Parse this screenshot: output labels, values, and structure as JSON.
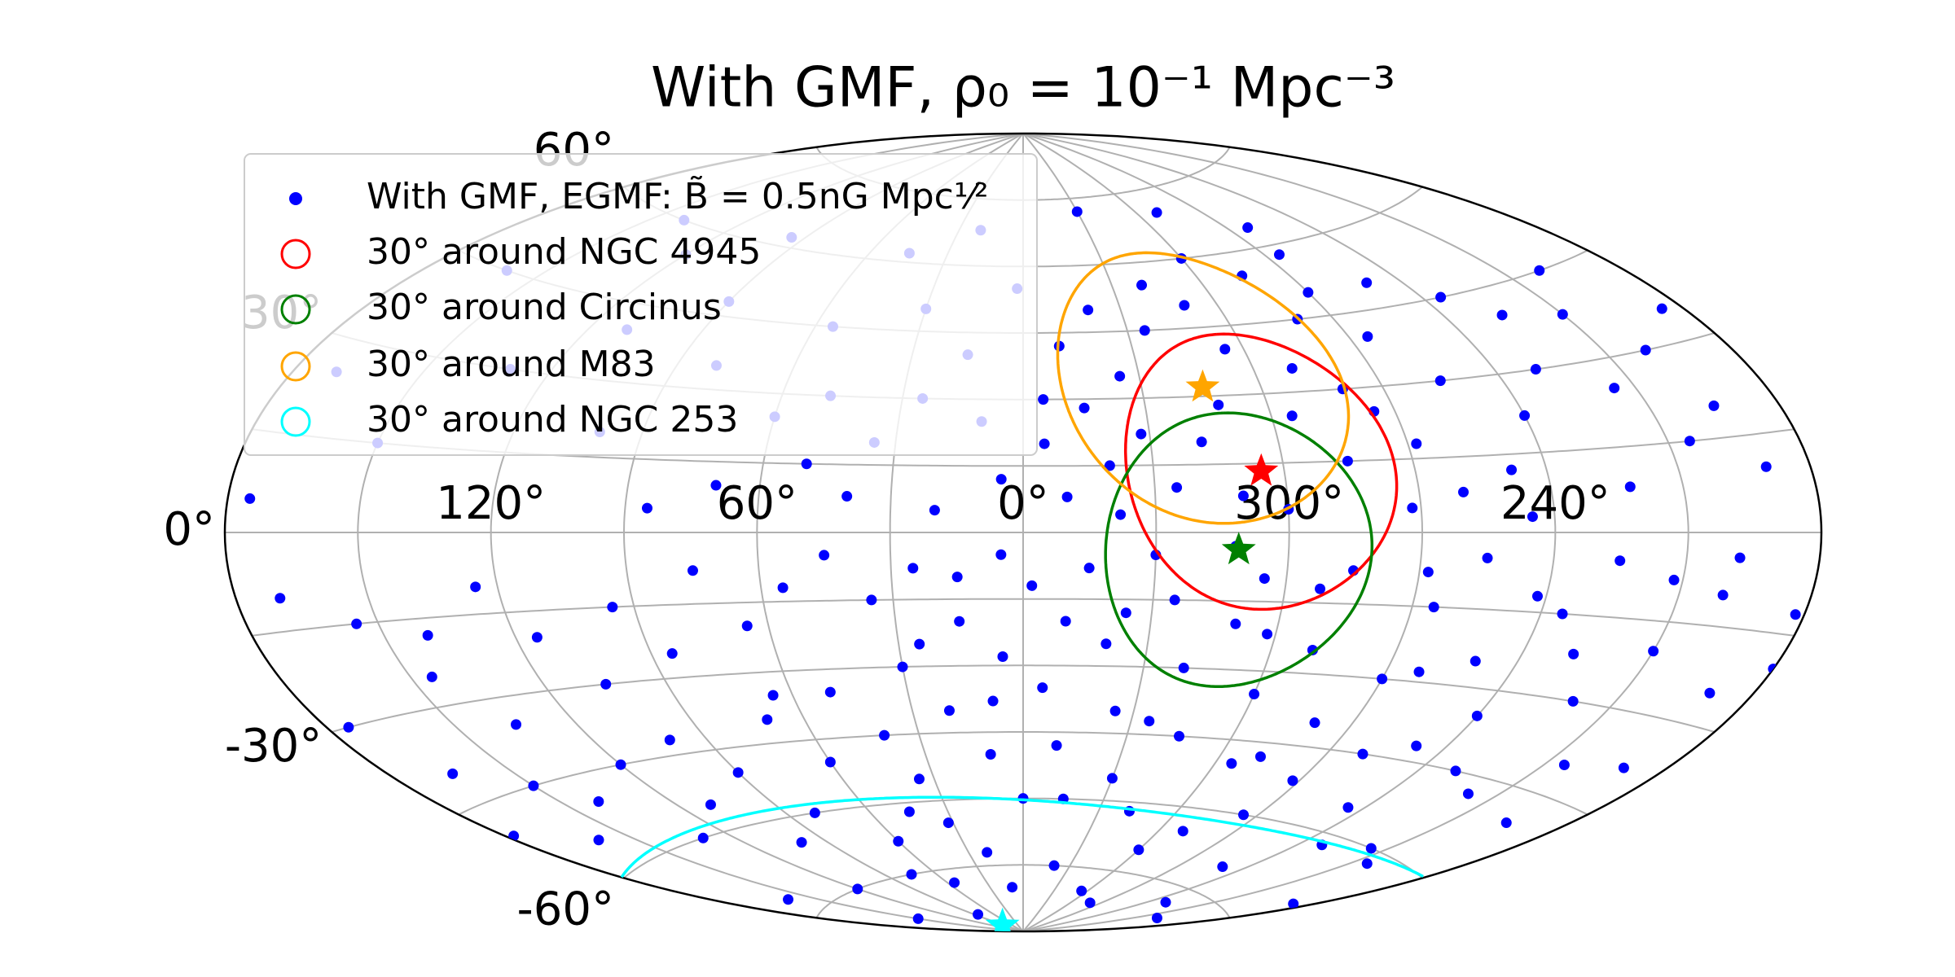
{
  "chart_data": {
    "type": "scatter",
    "projection": "aitoff",
    "title": "With GMF, ρ₀ = 10⁻¹ Mpc⁻³",
    "xlim": [
      180,
      -180
    ],
    "ylim": [
      -90,
      90
    ],
    "grid": true,
    "xgrid": [
      0,
      30,
      60,
      90,
      120,
      150,
      210,
      240,
      270,
      300,
      330
    ],
    "ygrid": [
      -75,
      -60,
      -45,
      -30,
      -15,
      0,
      15,
      30,
      45,
      60,
      75
    ],
    "xticks": [
      {
        "value": 120,
        "label": "120°"
      },
      {
        "value": 60,
        "label": "60°"
      },
      {
        "value": 0,
        "label": "0°"
      },
      {
        "value": 300,
        "label": "300°"
      },
      {
        "value": 240,
        "label": "240°"
      }
    ],
    "yticks": [
      {
        "value": 60,
        "label": "60°"
      },
      {
        "value": 30,
        "label": "30°"
      },
      {
        "value": 0,
        "label": "0°"
      },
      {
        "value": -30,
        "label": "-30°"
      },
      {
        "value": -60,
        "label": "-60°"
      }
    ],
    "legend": "upper left",
    "series": [
      {
        "name": "With GMF, EGMF: B̃ = 0.5nG Mpc¹⁄²",
        "color": "blue",
        "x": [
          262,
          290,
          330,
          20,
          45,
          250,
          235,
          225,
          210,
          200,
          195,
          190,
          205,
          215,
          230,
          240,
          248,
          255,
          265,
          270,
          280,
          285,
          300,
          310,
          320,
          340,
          350,
          355,
          345,
          335,
          325,
          290,
          275,
          268,
          260,
          272,
          285,
          295,
          305,
          318,
          325,
          332,
          340,
          350,
          355,
          5,
          10,
          15,
          25,
          35,
          40,
          50,
          60,
          70,
          80,
          90,
          100,
          110,
          120,
          130,
          140,
          150,
          160,
          170,
          175,
          85,
          95,
          55,
          30,
          2,
          300,
          310,
          245,
          222,
          200,
          185,
          265,
          280,
          312,
          338,
          20,
          48,
          5,
          15,
          25,
          35,
          45,
          55,
          65,
          75,
          85,
          95,
          105,
          115,
          125,
          135,
          145,
          155,
          165,
          175,
          170,
          160,
          150,
          140,
          130,
          120,
          110,
          100,
          90,
          80,
          70,
          60,
          50,
          40,
          30,
          20,
          10,
          0,
          355,
          350,
          345,
          340,
          335,
          330,
          325,
          320,
          315,
          310,
          305,
          300,
          295,
          290,
          285,
          280,
          275,
          270,
          265,
          260,
          255,
          250,
          245,
          240,
          235,
          230,
          225,
          220,
          215,
          210,
          205,
          200,
          195,
          190,
          185,
          250,
          300,
          340,
          20,
          60,
          120,
          160,
          10,
          200,
          280,
          45,
          75,
          15,
          25,
          350,
          330,
          318,
          290,
          262,
          232,
          212,
          180,
          178,
          140,
          100,
          65,
          35,
          5,
          358,
          312,
          302,
          288,
          272,
          248,
          228,
          205,
          190,
          345,
          8,
          32,
          55,
          305,
          230,
          150,
          85,
          325,
          268,
          292,
          336,
          242,
          218,
          198,
          182
        ],
        "y": [
          64,
          70,
          72,
          68,
          62,
          50,
          45,
          40,
          38,
          30,
          20,
          10,
          15,
          25,
          30,
          22,
          12,
          30,
          40,
          50,
          45,
          55,
          60,
          50,
          55,
          50,
          42,
          30,
          28,
          35,
          45,
          35,
          25,
          18,
          8,
          5,
          15,
          25,
          40,
          20,
          10,
          22,
          15,
          8,
          20,
          12,
          25,
          40,
          30,
          20,
          8,
          15,
          25,
          10,
          35,
          48,
          20,
          40,
          55,
          30,
          60,
          15,
          45,
          25,
          5,
          5,
          62,
          45,
          50,
          55,
          5,
          8,
          3,
          8,
          45,
          35,
          58,
          30,
          28,
          4,
          5,
          30,
          -5,
          -10,
          -8,
          -15,
          -5,
          -12,
          -20,
          -8,
          -25,
          -15,
          -30,
          -20,
          -10,
          -35,
          -25,
          -15,
          -40,
          -30,
          -10,
          -55,
          -45,
          -50,
          -60,
          -45,
          -55,
          -65,
          -50,
          -60,
          -40,
          -50,
          -35,
          -45,
          -30,
          -40,
          -50,
          -60,
          -35,
          -20,
          -8,
          -25,
          -40,
          -55,
          -15,
          -30,
          -45,
          -20,
          -10,
          -35,
          -50,
          -25,
          -8,
          -40,
          -60,
          -30,
          -15,
          -45,
          -5,
          -25,
          -55,
          -35,
          -15,
          -45,
          -5,
          -30,
          -60,
          -20,
          -40,
          -10,
          -50,
          -25,
          -70,
          -70,
          -70,
          -75,
          -72,
          -68,
          -75,
          -72,
          -80,
          -80,
          -82,
          -62,
          -75,
          -20,
          -25,
          -48,
          -5,
          -62,
          -65,
          -28,
          -62,
          -8,
          -20,
          -50,
          -18,
          -42,
          -35,
          -55,
          -28,
          -12,
          -3,
          -22,
          -48,
          -52,
          -42,
          -22,
          -62,
          -38,
          -60,
          -38,
          -65,
          -78,
          -80,
          -78,
          -82,
          -85,
          -42,
          -8,
          -12,
          -18,
          -12,
          -48,
          -4,
          -12
        ]
      }
    ],
    "circles": [
      {
        "name": "30° around NGC 4945",
        "color": "red",
        "x": 305.3,
        "y": 13.3,
        "radius": 30
      },
      {
        "name": "30° around Circinus",
        "color": "green",
        "x": 311.3,
        "y": -3.8,
        "radius": 30
      },
      {
        "name": "30° around M83",
        "color": "orange",
        "x": 314.6,
        "y": 32.0,
        "radius": 30
      },
      {
        "name": "30° around NGC 253",
        "color": "cyan",
        "x": 97.4,
        "y": -88.0,
        "radius": 30
      }
    ]
  }
}
